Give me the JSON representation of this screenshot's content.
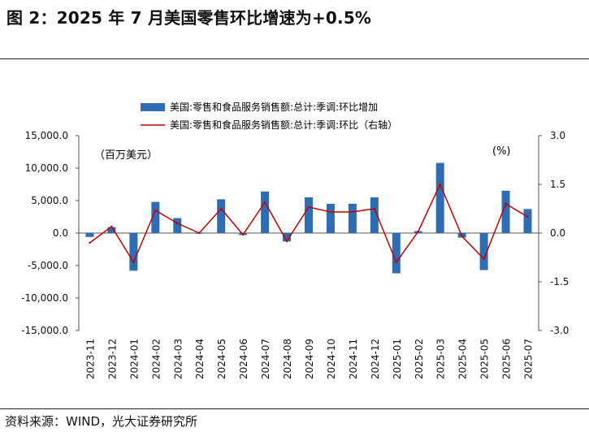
{
  "title": "图 2：2025 年 7 月美国零售环比增速为+0.5%",
  "source": "资料来源：WIND，光大证券研究所",
  "chart_data": {
    "type": "bar+line",
    "categories": [
      "2023-11",
      "2023-12",
      "2024-01",
      "2024-02",
      "2024-03",
      "2024-04",
      "2024-05",
      "2024-06",
      "2024-07",
      "2024-08",
      "2024-09",
      "2024-10",
      "2024-11",
      "2024-12",
      "2025-01",
      "2025-02",
      "2025-03",
      "2025-04",
      "2025-05",
      "2025-06",
      "2025-07"
    ],
    "series": [
      {
        "name": "美国:零售和食品服务销售额:总计:季调:环比增加",
        "type": "bar",
        "axis": "left",
        "color": "#2e6db4",
        "values": [
          -600,
          900,
          -5800,
          4800,
          2300,
          -50,
          5200,
          -300,
          6400,
          -1300,
          5500,
          4500,
          4500,
          5500,
          -6200,
          300,
          10800,
          -700,
          -5700,
          6500,
          3700
        ]
      },
      {
        "name": "美国:零售和食品服务销售额:总计:季调:环比（右轴）",
        "type": "line",
        "axis": "right",
        "color": "#c00000",
        "values": [
          -0.3,
          0.2,
          -0.9,
          0.7,
          0.3,
          0.0,
          0.75,
          -0.05,
          0.95,
          -0.25,
          0.8,
          0.65,
          0.65,
          0.75,
          -0.9,
          0.05,
          1.5,
          -0.1,
          -0.8,
          0.9,
          0.5
        ]
      }
    ],
    "left_axis": {
      "unit_label": "（百万美元）",
      "ylim": [
        -15000,
        15000
      ],
      "ticks": [
        "15,000.0",
        "10,000.0",
        "5,000.0",
        "0.0",
        "-5,000.0",
        "-10,000.0",
        "-15,000.0"
      ]
    },
    "right_axis": {
      "unit_label": "(%)",
      "ylim": [
        -3.0,
        3.0
      ],
      "ticks": [
        "3.0",
        "1.5",
        "0.0",
        "-1.5",
        "-3.0"
      ]
    },
    "legend_position": "top-center",
    "grid": false
  }
}
